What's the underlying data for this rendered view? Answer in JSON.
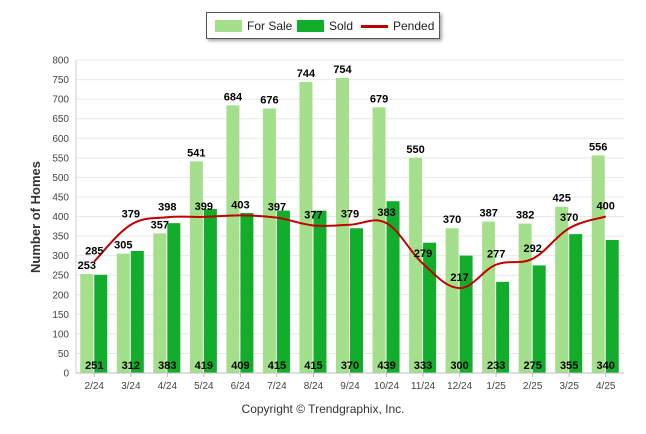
{
  "chart_data": {
    "type": "bar",
    "ylabel": "Number of Homes",
    "xlabel": "",
    "ylim": [
      0,
      800
    ],
    "yticks": [
      0,
      50,
      100,
      150,
      200,
      250,
      300,
      350,
      400,
      450,
      500,
      550,
      600,
      650,
      700,
      750,
      800
    ],
    "categories": [
      "2/24",
      "3/24",
      "4/24",
      "5/24",
      "6/24",
      "7/24",
      "8/24",
      "9/24",
      "10/24",
      "11/24",
      "12/24",
      "1/25",
      "2/25",
      "3/25",
      "4/25"
    ],
    "series": [
      {
        "name": "For Sale",
        "kind": "bar",
        "color": "#a4e08b",
        "values": [
          253,
          305,
          357,
          541,
          684,
          676,
          744,
          754,
          679,
          550,
          370,
          387,
          382,
          425,
          556
        ]
      },
      {
        "name": "Sold",
        "kind": "bar",
        "color": "#12ad2b",
        "values": [
          251,
          312,
          383,
          419,
          409,
          415,
          415,
          370,
          439,
          333,
          300,
          233,
          275,
          355,
          340
        ]
      },
      {
        "name": "Pended",
        "kind": "line",
        "color": "#c00000",
        "values": [
          285,
          379,
          398,
          399,
          403,
          397,
          377,
          379,
          383,
          279,
          217,
          277,
          292,
          370,
          400
        ]
      }
    ],
    "grid": true,
    "legend_position": "top-center"
  },
  "legend": {
    "for_sale_label": "For Sale",
    "sold_label": "Sold",
    "pended_label": "Pended"
  },
  "footer": {
    "copyright": "Copyright © Trendgraphix, Inc."
  }
}
